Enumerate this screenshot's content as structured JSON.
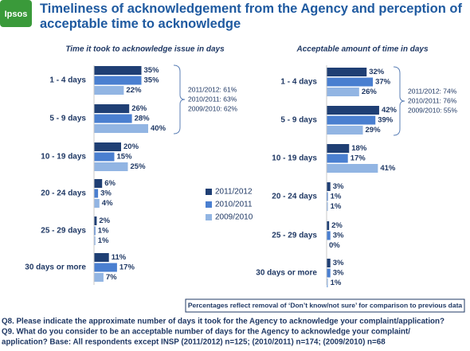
{
  "logo": "Ipsos",
  "title": [
    "Timeliness of acknowledgement from the Agency and perception of",
    "acceptable time to acknowledge"
  ],
  "note": "Percentages reflect removal of ‘Don’t know/not sure’ for comparison to previous data",
  "footnotes": [
    "Q8. Please indicate the approximate number of days it took for the Agency to acknowledge your complaint/application?",
    "Q9. What do you consider to be an acceptable number of days for the Agency to acknowledge your complaint/",
    "application?  Base:  All respondents except INSP (2011/2012) n=125; (2010/2011) n=174; (2009/2010) n=68"
  ],
  "chart_data": [
    {
      "type": "bar",
      "title": "Time it took to acknowledge issue in days",
      "categories": [
        "1 - 4 days",
        "5 - 9 days",
        "10 - 19 days",
        "20 - 24 days",
        "25 - 29 days",
        "30 days or more"
      ],
      "series": [
        {
          "name": "2011/2012",
          "color": "#1f3f74",
          "values": [
            35,
            26,
            20,
            6,
            2,
            11
          ],
          "value_labels": [
            "35%",
            "26%",
            "20%",
            "6%",
            "2%",
            "11%"
          ]
        },
        {
          "name": "2010/2011",
          "color": "#4a7fd0",
          "values": [
            35,
            28,
            15,
            3,
            1,
            17
          ],
          "value_labels": [
            "35%",
            "28%",
            "15%",
            "3%",
            "1%",
            "17%"
          ]
        },
        {
          "name": "2009/2010",
          "color": "#92b5e3",
          "values": [
            22,
            40,
            25,
            4,
            1,
            7
          ],
          "value_labels": [
            "22%",
            "40%",
            "25%",
            "4%",
            "1%",
            "7%"
          ]
        }
      ],
      "annotations": [
        "2011/2012: 61%",
        "2010/2011: 63%",
        "2009/2010: 62%"
      ]
    },
    {
      "type": "bar",
      "title": "Acceptable amount of time in days",
      "categories": [
        "1 - 4 days",
        "5 - 9 days",
        "10 - 19 days",
        "20 - 24 days",
        "25 - 29 days",
        "30 days or more"
      ],
      "series": [
        {
          "color": "#1f3f74",
          "values": [
            32,
            42,
            18,
            3,
            2,
            3
          ],
          "value_labels": [
            "32%",
            "42%",
            "18%",
            "3%",
            "2%",
            "3%"
          ]
        },
        {
          "color": "#4a7fd0",
          "values": [
            37,
            39,
            17,
            1,
            3,
            3
          ],
          "value_labels": [
            "37%",
            "39%",
            "17%",
            "1%",
            "3%",
            "3%"
          ]
        },
        {
          "color": "#92b5e3",
          "values": [
            26,
            29,
            41,
            1,
            0,
            1
          ],
          "value_labels": [
            "26%",
            "29%",
            "41%",
            "1%",
            "0%",
            "1%"
          ]
        }
      ],
      "annotations": [
        "2011/2012: 74%",
        "2010/2011: 76%",
        "2009/2010: 55%"
      ]
    }
  ]
}
